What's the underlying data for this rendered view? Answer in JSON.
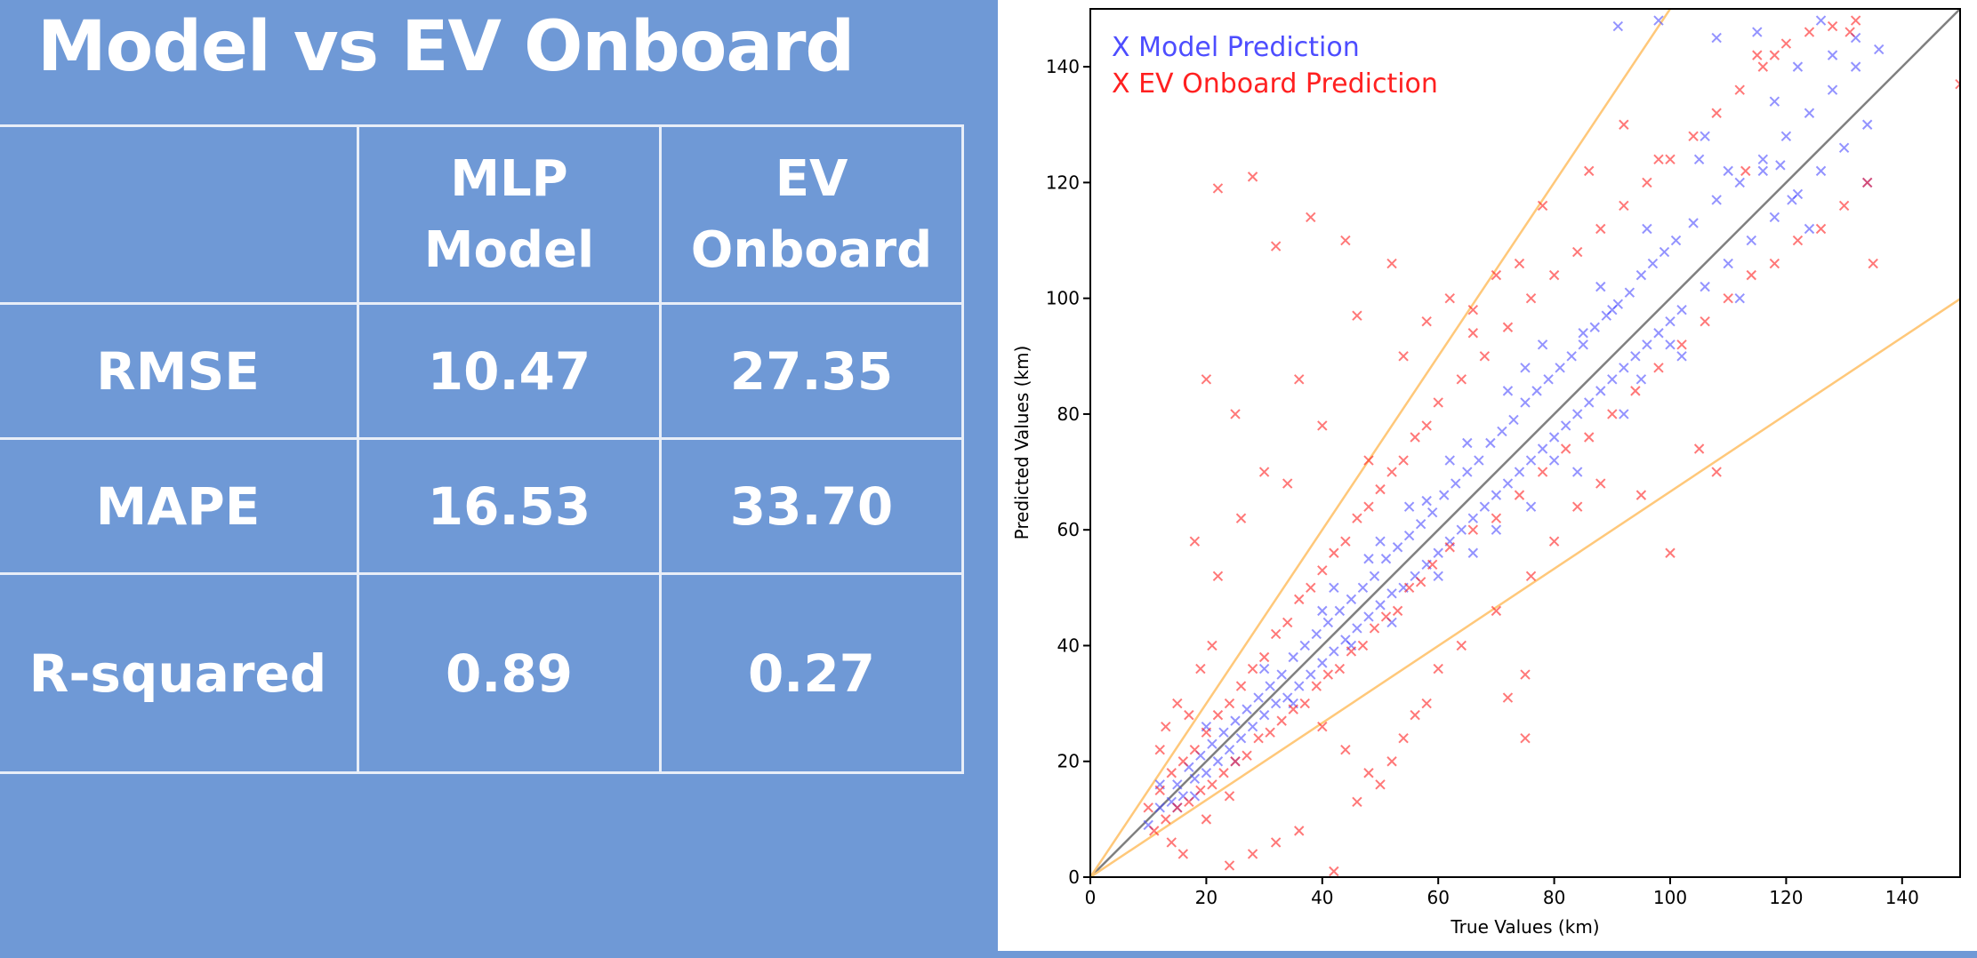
{
  "slide_title": "Model vs EV Onboard",
  "table": {
    "headers": [
      "",
      "MLP Model",
      "EV Onboard"
    ],
    "rows": [
      {
        "metric": "RMSE",
        "mlp": "10.47",
        "ev": "27.35"
      },
      {
        "metric": "MAPE",
        "mlp": "16.53",
        "ev": "33.70"
      },
      {
        "metric": "R-squared",
        "mlp": "0.89",
        "ev": "0.27"
      }
    ]
  },
  "chart_data": {
    "type": "scatter",
    "title": "",
    "xlabel": "True Values (km)",
    "ylabel": "Predicted Values (km)",
    "xlim": [
      0,
      150
    ],
    "ylim": [
      0,
      150
    ],
    "xticks": [
      0,
      20,
      40,
      60,
      80,
      100,
      120,
      140
    ],
    "yticks": [
      0,
      20,
      40,
      60,
      80,
      100,
      120,
      140
    ],
    "legend_position": "top-left",
    "grid": false,
    "series": [
      {
        "name": "X Model Prediction",
        "color": "#4d4dff",
        "marker": "x",
        "points": [
          [
            10,
            9
          ],
          [
            12,
            12
          ],
          [
            14,
            13
          ],
          [
            15,
            16
          ],
          [
            16,
            14
          ],
          [
            17,
            19
          ],
          [
            18,
            17
          ],
          [
            19,
            21
          ],
          [
            20,
            18
          ],
          [
            21,
            23
          ],
          [
            22,
            20
          ],
          [
            23,
            25
          ],
          [
            24,
            22
          ],
          [
            25,
            27
          ],
          [
            26,
            24
          ],
          [
            27,
            29
          ],
          [
            28,
            26
          ],
          [
            29,
            31
          ],
          [
            30,
            28
          ],
          [
            31,
            33
          ],
          [
            32,
            30
          ],
          [
            33,
            35
          ],
          [
            34,
            31
          ],
          [
            35,
            38
          ],
          [
            36,
            33
          ],
          [
            37,
            40
          ],
          [
            38,
            35
          ],
          [
            39,
            42
          ],
          [
            40,
            37
          ],
          [
            41,
            44
          ],
          [
            42,
            39
          ],
          [
            43,
            46
          ],
          [
            44,
            41
          ],
          [
            45,
            48
          ],
          [
            46,
            43
          ],
          [
            47,
            50
          ],
          [
            48,
            45
          ],
          [
            49,
            52
          ],
          [
            50,
            47
          ],
          [
            51,
            55
          ],
          [
            52,
            49
          ],
          [
            53,
            57
          ],
          [
            54,
            50
          ],
          [
            55,
            59
          ],
          [
            56,
            52
          ],
          [
            57,
            61
          ],
          [
            58,
            54
          ],
          [
            59,
            63
          ],
          [
            60,
            56
          ],
          [
            61,
            66
          ],
          [
            62,
            58
          ],
          [
            63,
            68
          ],
          [
            64,
            60
          ],
          [
            65,
            70
          ],
          [
            66,
            62
          ],
          [
            67,
            72
          ],
          [
            68,
            64
          ],
          [
            69,
            75
          ],
          [
            70,
            66
          ],
          [
            71,
            77
          ],
          [
            72,
            68
          ],
          [
            73,
            79
          ],
          [
            74,
            70
          ],
          [
            75,
            82
          ],
          [
            76,
            72
          ],
          [
            77,
            84
          ],
          [
            78,
            74
          ],
          [
            79,
            86
          ],
          [
            80,
            76
          ],
          [
            81,
            88
          ],
          [
            82,
            78
          ],
          [
            83,
            90
          ],
          [
            84,
            80
          ],
          [
            85,
            92
          ],
          [
            86,
            82
          ],
          [
            87,
            95
          ],
          [
            88,
            84
          ],
          [
            89,
            97
          ],
          [
            90,
            86
          ],
          [
            91,
            99
          ],
          [
            92,
            88
          ],
          [
            93,
            101
          ],
          [
            94,
            90
          ],
          [
            95,
            104
          ],
          [
            96,
            92
          ],
          [
            97,
            106
          ],
          [
            98,
            94
          ],
          [
            99,
            108
          ],
          [
            100,
            96
          ],
          [
            101,
            110
          ],
          [
            102,
            98
          ],
          [
            104,
            113
          ],
          [
            106,
            102
          ],
          [
            108,
            117
          ],
          [
            110,
            106
          ],
          [
            112,
            120
          ],
          [
            114,
            110
          ],
          [
            116,
            124
          ],
          [
            118,
            114
          ],
          [
            120,
            128
          ],
          [
            122,
            118
          ],
          [
            124,
            132
          ],
          [
            126,
            122
          ],
          [
            128,
            136
          ],
          [
            130,
            126
          ],
          [
            132,
            140
          ],
          [
            134,
            130
          ],
          [
            136,
            143
          ],
          [
            110,
            122
          ],
          [
            105,
            124
          ],
          [
            100,
            92
          ],
          [
            95,
            86
          ],
          [
            90,
            98
          ],
          [
            85,
            94
          ],
          [
            80,
            72
          ],
          [
            75,
            88
          ],
          [
            70,
            60
          ],
          [
            65,
            75
          ],
          [
            60,
            52
          ],
          [
            55,
            64
          ],
          [
            50,
            58
          ],
          [
            45,
            40
          ],
          [
            40,
            46
          ],
          [
            35,
            30
          ],
          [
            30,
            36
          ],
          [
            25,
            20
          ],
          [
            20,
            26
          ],
          [
            15,
            12
          ],
          [
            12,
            16
          ],
          [
            18,
            14
          ],
          [
            42,
            50
          ],
          [
            48,
            55
          ],
          [
            52,
            44
          ],
          [
            58,
            65
          ],
          [
            62,
            72
          ],
          [
            66,
            56
          ],
          [
            72,
            84
          ],
          [
            76,
            64
          ],
          [
            78,
            92
          ],
          [
            84,
            70
          ],
          [
            88,
            102
          ],
          [
            92,
            80
          ],
          [
            96,
            112
          ],
          [
            102,
            90
          ],
          [
            106,
            128
          ],
          [
            112,
            100
          ],
          [
            118,
            134
          ],
          [
            124,
            112
          ],
          [
            128,
            142
          ],
          [
            134,
            120
          ],
          [
            91,
            147
          ],
          [
            98,
            148
          ],
          [
            108,
            145
          ],
          [
            115,
            146
          ],
          [
            122,
            140
          ],
          [
            126,
            148
          ],
          [
            132,
            145
          ],
          [
            116,
            122
          ],
          [
            119,
            123
          ],
          [
            121,
            117
          ]
        ]
      },
      {
        "name": "X EV Onboard Prediction",
        "color": "#ff2020",
        "marker": "x",
        "points": [
          [
            10,
            12
          ],
          [
            11,
            8
          ],
          [
            12,
            15
          ],
          [
            13,
            10
          ],
          [
            14,
            18
          ],
          [
            15,
            12
          ],
          [
            16,
            20
          ],
          [
            17,
            13
          ],
          [
            18,
            22
          ],
          [
            19,
            15
          ],
          [
            20,
            25
          ],
          [
            21,
            16
          ],
          [
            22,
            28
          ],
          [
            23,
            18
          ],
          [
            24,
            30
          ],
          [
            25,
            20
          ],
          [
            26,
            33
          ],
          [
            27,
            21
          ],
          [
            28,
            36
          ],
          [
            29,
            24
          ],
          [
            30,
            38
          ],
          [
            31,
            25
          ],
          [
            32,
            42
          ],
          [
            33,
            27
          ],
          [
            34,
            44
          ],
          [
            35,
            29
          ],
          [
            36,
            48
          ],
          [
            37,
            30
          ],
          [
            38,
            50
          ],
          [
            39,
            33
          ],
          [
            40,
            53
          ],
          [
            41,
            35
          ],
          [
            42,
            56
          ],
          [
            43,
            36
          ],
          [
            44,
            58
          ],
          [
            45,
            39
          ],
          [
            46,
            62
          ],
          [
            47,
            40
          ],
          [
            48,
            64
          ],
          [
            49,
            43
          ],
          [
            50,
            67
          ],
          [
            51,
            45
          ],
          [
            52,
            70
          ],
          [
            53,
            46
          ],
          [
            54,
            72
          ],
          [
            55,
            50
          ],
          [
            56,
            76
          ],
          [
            57,
            51
          ],
          [
            58,
            78
          ],
          [
            59,
            54
          ],
          [
            60,
            82
          ],
          [
            62,
            57
          ],
          [
            64,
            86
          ],
          [
            66,
            60
          ],
          [
            68,
            90
          ],
          [
            70,
            62
          ],
          [
            72,
            95
          ],
          [
            74,
            66
          ],
          [
            76,
            100
          ],
          [
            78,
            70
          ],
          [
            80,
            104
          ],
          [
            82,
            74
          ],
          [
            84,
            108
          ],
          [
            86,
            76
          ],
          [
            88,
            112
          ],
          [
            90,
            80
          ],
          [
            92,
            116
          ],
          [
            94,
            84
          ],
          [
            96,
            120
          ],
          [
            98,
            88
          ],
          [
            100,
            124
          ],
          [
            102,
            92
          ],
          [
            104,
            128
          ],
          [
            106,
            96
          ],
          [
            108,
            132
          ],
          [
            110,
            100
          ],
          [
            112,
            136
          ],
          [
            114,
            104
          ],
          [
            116,
            140
          ],
          [
            118,
            106
          ],
          [
            120,
            144
          ],
          [
            122,
            110
          ],
          [
            124,
            146
          ],
          [
            126,
            112
          ],
          [
            128,
            147
          ],
          [
            130,
            116
          ],
          [
            132,
            148
          ],
          [
            134,
            120
          ],
          [
            135,
            106
          ],
          [
            150,
            137
          ],
          [
            22,
            119
          ],
          [
            28,
            121
          ],
          [
            32,
            109
          ],
          [
            38,
            114
          ],
          [
            44,
            110
          ],
          [
            46,
            97
          ],
          [
            52,
            106
          ],
          [
            20,
            86
          ],
          [
            25,
            80
          ],
          [
            30,
            70
          ],
          [
            18,
            58
          ],
          [
            22,
            52
          ],
          [
            26,
            62
          ],
          [
            34,
            68
          ],
          [
            40,
            78
          ],
          [
            36,
            86
          ],
          [
            48,
            72
          ],
          [
            54,
            90
          ],
          [
            58,
            96
          ],
          [
            62,
            100
          ],
          [
            66,
            94
          ],
          [
            24,
            2
          ],
          [
            28,
            4
          ],
          [
            32,
            6
          ],
          [
            36,
            8
          ],
          [
            42,
            1
          ],
          [
            46,
            13
          ],
          [
            50,
            16
          ],
          [
            54,
            24
          ],
          [
            58,
            30
          ],
          [
            40,
            26
          ],
          [
            44,
            22
          ],
          [
            48,
            18
          ],
          [
            52,
            20
          ],
          [
            56,
            28
          ],
          [
            60,
            36
          ],
          [
            64,
            40
          ],
          [
            70,
            46
          ],
          [
            76,
            52
          ],
          [
            80,
            58
          ],
          [
            84,
            64
          ],
          [
            88,
            68
          ],
          [
            100,
            56
          ],
          [
            75,
            24
          ],
          [
            75,
            35
          ],
          [
            72,
            31
          ],
          [
            95,
            66
          ],
          [
            105,
            74
          ],
          [
            108,
            70
          ],
          [
            113,
            122
          ],
          [
            115,
            142
          ],
          [
            118,
            142
          ],
          [
            131,
            146
          ],
          [
            98,
            124
          ],
          [
            92,
            130
          ],
          [
            86,
            122
          ],
          [
            78,
            116
          ],
          [
            74,
            106
          ],
          [
            70,
            104
          ],
          [
            66,
            98
          ],
          [
            14,
            6
          ],
          [
            16,
            4
          ],
          [
            20,
            10
          ],
          [
            24,
            14
          ],
          [
            15,
            30
          ],
          [
            17,
            28
          ],
          [
            19,
            36
          ],
          [
            21,
            40
          ],
          [
            12,
            22
          ],
          [
            13,
            26
          ]
        ]
      }
    ],
    "reference_lines": [
      {
        "label": "",
        "slope": 1,
        "color": "#808080"
      },
      {
        "label": "",
        "slope": 1.5,
        "color": "#ffc87a"
      },
      {
        "label": "",
        "slope": 0.666,
        "color": "#ffc87a"
      }
    ]
  }
}
